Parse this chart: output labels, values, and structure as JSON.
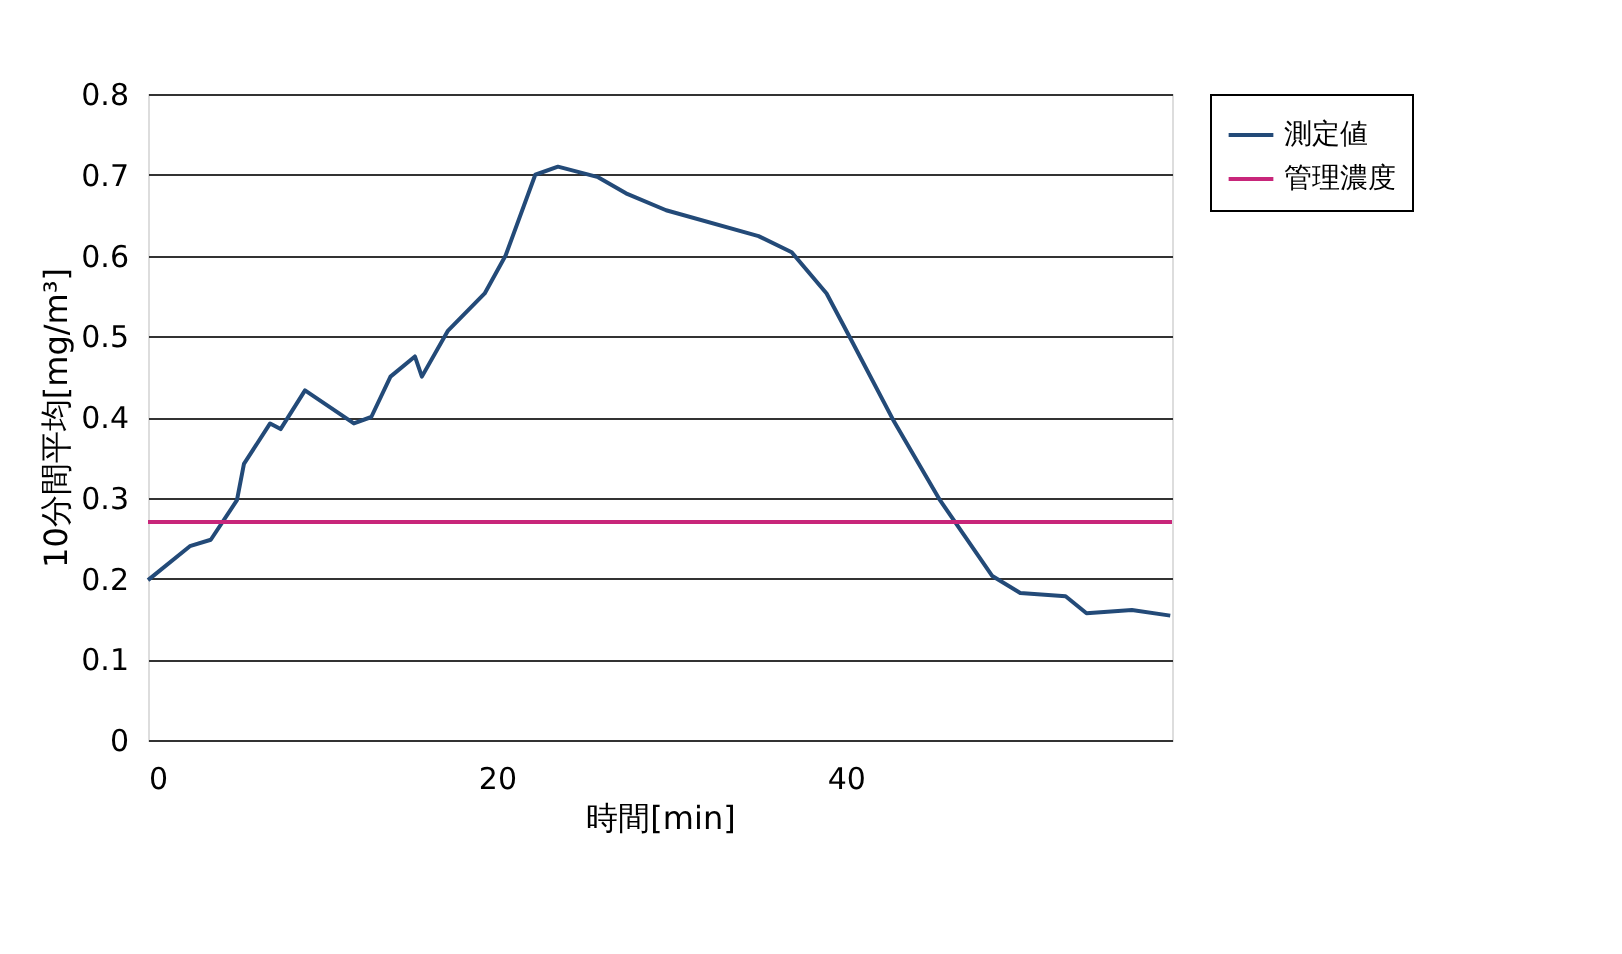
{
  "chart_data": {
    "type": "line",
    "xlabel": "時間[min]",
    "ylabel": "10分間平均[mg/m³]",
    "xlim": [
      0,
      58.7
    ],
    "xticks": [
      0,
      20,
      40
    ],
    "ylim": [
      0,
      0.8
    ],
    "yticks": [
      0,
      0.1,
      0.2,
      0.3,
      0.4,
      0.5,
      0.6,
      0.7,
      0.8
    ],
    "grid": "y",
    "legend": "right",
    "line_style": "solid",
    "marker": "none",
    "x": [
      0,
      2.4,
      3.6,
      5.1,
      5.5,
      7.0,
      7.6,
      9.0,
      11.8,
      12.8,
      13.9,
      15.3,
      15.7,
      17.2,
      19.3,
      20.5,
      22.2,
      23.5,
      25.8,
      27.4,
      29.7,
      35.0,
      36.9,
      38.9,
      40.2,
      42.7,
      45.4,
      48.4,
      50.0,
      52.6,
      53.8,
      56.4,
      58.6
    ],
    "series": [
      {
        "name": "測定値",
        "color": "#234a78",
        "values": [
          0.198,
          0.24,
          0.248,
          0.297,
          0.342,
          0.392,
          0.385,
          0.433,
          0.392,
          0.4,
          0.45,
          0.475,
          0.45,
          0.507,
          0.553,
          0.6,
          0.7,
          0.71,
          0.697,
          0.677,
          0.656,
          0.624,
          0.604,
          0.553,
          0.5,
          0.397,
          0.297,
          0.203,
          0.182,
          0.178,
          0.157,
          0.161,
          0.154
        ]
      }
    ],
    "ref_lines": [
      {
        "axis": "y",
        "value": 0.27,
        "label": "管理濃度",
        "color": "#c8267a"
      }
    ]
  }
}
